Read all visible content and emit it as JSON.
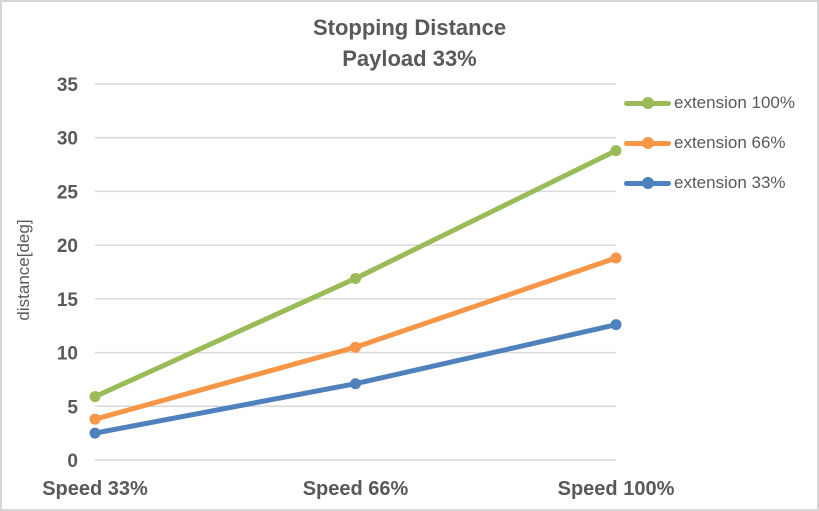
{
  "chart_data": {
    "type": "line",
    "title": "Stopping Distance",
    "subtitle": "Payload 33%",
    "categories": [
      "Speed 33%",
      "Speed 66%",
      "Speed 100%"
    ],
    "series": [
      {
        "name": "extension 100%",
        "color": "#9BBB59",
        "values": [
          5.9,
          16.9,
          28.8
        ]
      },
      {
        "name": "extension 66%",
        "color": "#F79646",
        "values": [
          3.8,
          10.5,
          18.8
        ]
      },
      {
        "name": "extension 33%",
        "color": "#4F81BD",
        "values": [
          2.5,
          7.1,
          12.6
        ]
      }
    ],
    "xlabel": "",
    "ylabel": "distance[deg]",
    "ylim": [
      0,
      35
    ],
    "yticks": [
      0,
      5,
      10,
      15,
      20,
      25,
      30,
      35
    ],
    "grid": true,
    "legend_position": "right-top",
    "marker": "circle"
  },
  "colors": {
    "text": "#595959",
    "gridline": "#D9D9D9",
    "border": "#D6D6D6",
    "background": "#FFFFFF"
  }
}
